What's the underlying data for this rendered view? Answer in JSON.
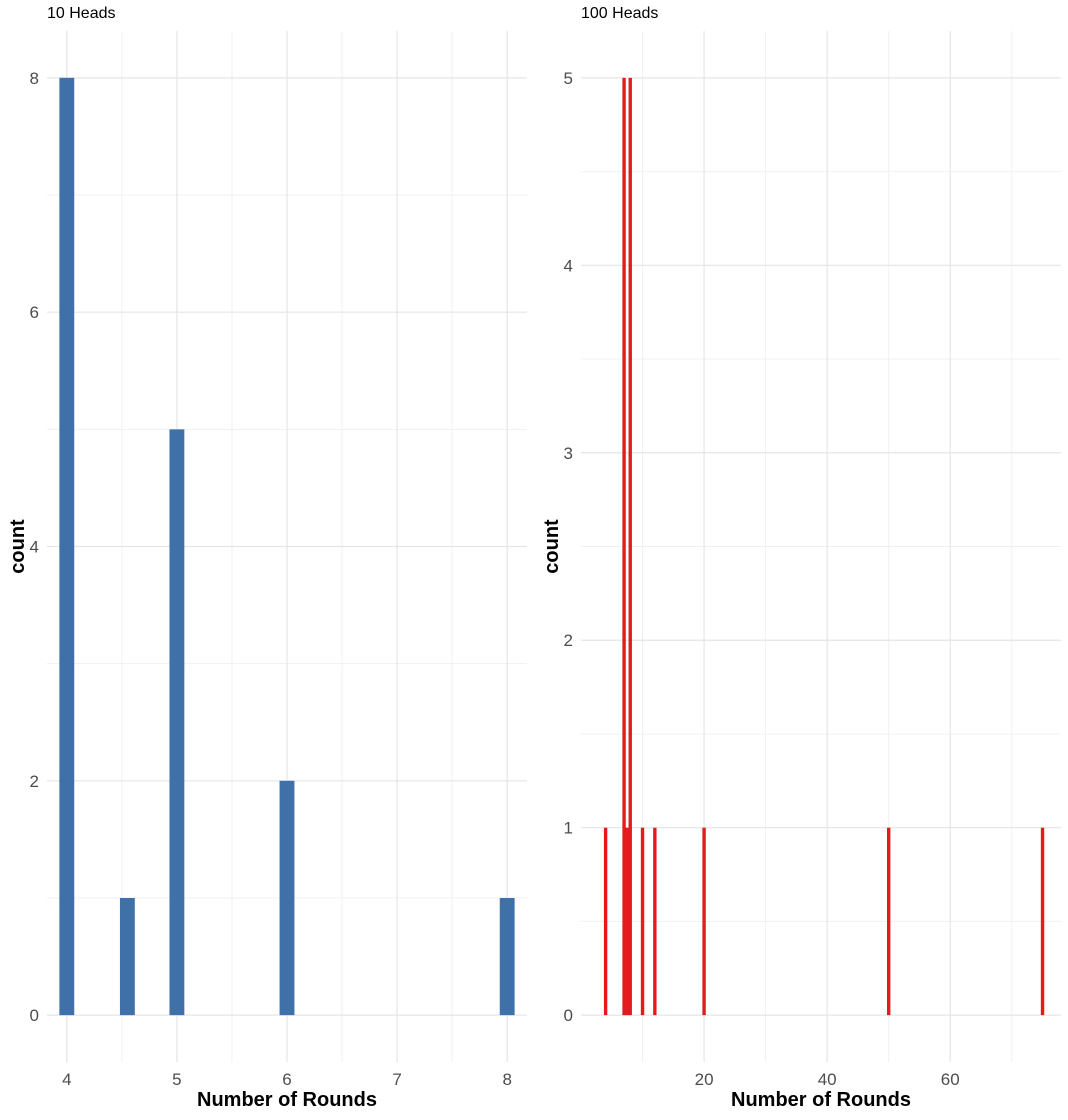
{
  "chart_data": [
    {
      "type": "bar",
      "title": "10 Heads",
      "xlabel": "Number of Rounds",
      "ylabel": "count",
      "bar_color": "#3F70A8",
      "xlim": [
        3.82,
        8.18
      ],
      "ylim": [
        -0.4,
        8.4
      ],
      "x_ticks": [
        4,
        5,
        6,
        7,
        8
      ],
      "y_ticks": [
        0,
        2,
        4,
        6,
        8
      ],
      "bar_width": 0.135,
      "bars": [
        {
          "x": 4,
          "count": 8
        },
        {
          "x": 4.55,
          "count": 1
        },
        {
          "x": 5,
          "count": 5
        },
        {
          "x": 6,
          "count": 2
        },
        {
          "x": 8,
          "count": 1
        }
      ]
    },
    {
      "type": "bar",
      "title": "100 Heads",
      "xlabel": "Number of Rounds",
      "ylabel": "count",
      "bar_color": "#E41A1C",
      "xlim": [
        0,
        78
      ],
      "ylim": [
        -0.25,
        5.25
      ],
      "x_ticks": [
        20,
        40,
        60
      ],
      "y_ticks": [
        0,
        1,
        2,
        3,
        4,
        5
      ],
      "bar_width": 0.55,
      "bars": [
        {
          "x": 4,
          "count": 1
        },
        {
          "x": 7,
          "count": 5
        },
        {
          "x": 7.5,
          "count": 1
        },
        {
          "x": 8,
          "count": 5
        },
        {
          "x": 10,
          "count": 1
        },
        {
          "x": 12,
          "count": 1
        },
        {
          "x": 20,
          "count": 1
        },
        {
          "x": 50,
          "count": 1
        },
        {
          "x": 75,
          "count": 1
        }
      ]
    }
  ]
}
